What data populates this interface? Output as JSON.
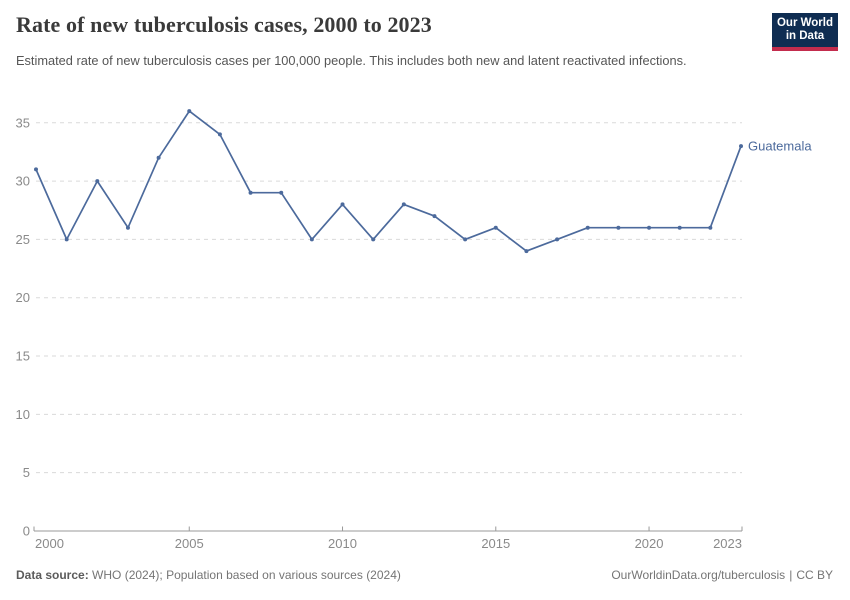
{
  "header": {
    "title": "Rate of new tuberculosis cases, 2000 to 2023",
    "subtitle": "Estimated rate of new tuberculosis cases per 100,000 people. This includes both new and latent reactivated infections.",
    "logo": {
      "line1": "Our World",
      "line2": "in Data"
    }
  },
  "chart_data": {
    "type": "line",
    "title": "Rate of new tuberculosis cases, 2000 to 2023",
    "xlabel": "",
    "ylabel": "",
    "xlim": [
      2000,
      2023
    ],
    "ylim": [
      0,
      37
    ],
    "x_ticks": [
      2000,
      2005,
      2010,
      2015,
      2020,
      2023
    ],
    "y_ticks": [
      0,
      5,
      10,
      15,
      20,
      25,
      30,
      35
    ],
    "grid": "horizontal-dashed",
    "legend_position": "end-of-line-label",
    "series": [
      {
        "name": "Guatemala",
        "color": "#4c6a9c",
        "x": [
          2000,
          2001,
          2002,
          2003,
          2004,
          2005,
          2006,
          2007,
          2008,
          2009,
          2010,
          2011,
          2012,
          2013,
          2014,
          2015,
          2016,
          2017,
          2018,
          2019,
          2020,
          2021,
          2022,
          2023
        ],
        "values": [
          31,
          25,
          30,
          26,
          32,
          36,
          34,
          29,
          29,
          25,
          28,
          25,
          28,
          27,
          25,
          26,
          24,
          25,
          26,
          26,
          26,
          26,
          26,
          33
        ]
      }
    ]
  },
  "footer": {
    "source_label": "Data source:",
    "source_text": "WHO (2024); Population based on various sources (2024)",
    "link": "OurWorldinData.org/tuberculosis",
    "separator": "|",
    "license": "CC BY"
  },
  "colors": {
    "line": "#4c6a9c",
    "entity_label": "#4c6a9c",
    "grid": "#dadada",
    "axis": "#999999",
    "tick_text": "#8a8a8a",
    "title_text": "#3a3a3a",
    "subtitle_text": "#565656",
    "footer_text": "#757575",
    "logo_bg": "#0f2d52",
    "logo_accent": "#c32c4d"
  }
}
